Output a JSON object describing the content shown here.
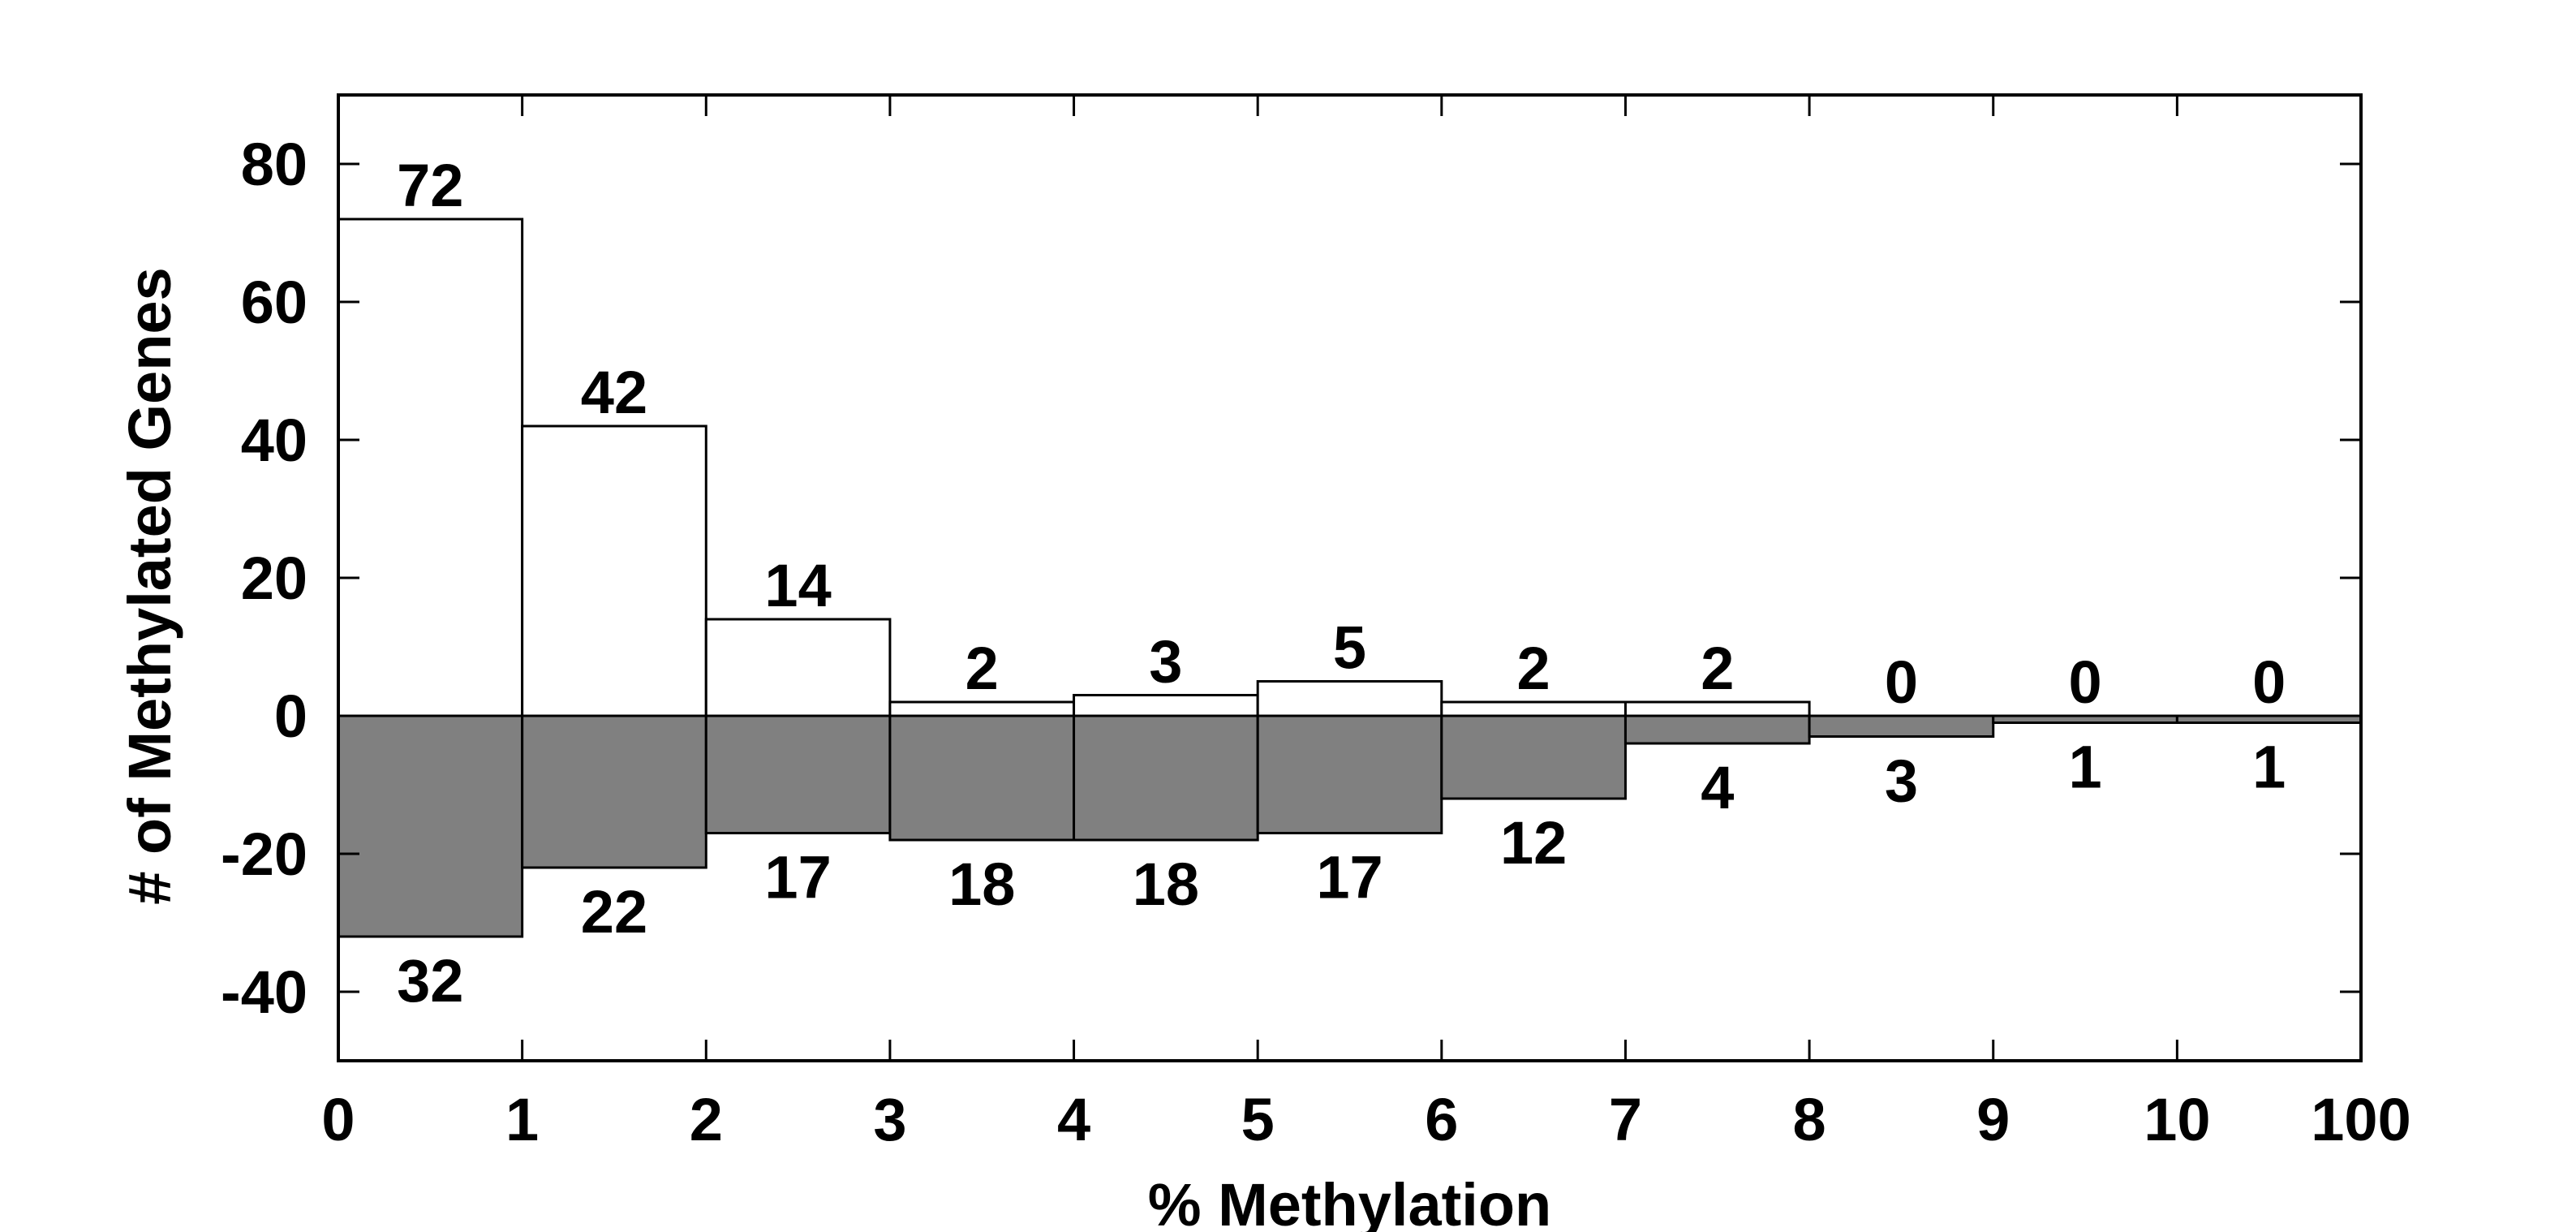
{
  "chart_data": {
    "type": "bar",
    "xlabel": "% Methylation",
    "ylabel": "# of Methylated Genes",
    "x_tick_labels": [
      "0",
      "1",
      "2",
      "3",
      "4",
      "5",
      "6",
      "7",
      "8",
      "9",
      "10",
      "100"
    ],
    "ylim": [
      -50,
      90
    ],
    "y_ticks": [
      -40,
      -20,
      0,
      20,
      40,
      60,
      80
    ],
    "grid": false,
    "legend": "none",
    "series": [
      {
        "values": [
          72,
          42,
          14,
          2,
          3,
          5,
          2,
          2,
          0,
          0,
          0
        ],
        "labels": [
          "72",
          "42",
          "14",
          "2",
          "3",
          "5",
          "2",
          "2",
          "0",
          "0",
          "0"
        ],
        "color": "#ffffff",
        "direction": "up"
      },
      {
        "values": [
          -32,
          -22,
          -17,
          -18,
          -18,
          -17,
          -12,
          -4,
          -3,
          -1,
          -1
        ],
        "labels": [
          "32",
          "22",
          "17",
          "18",
          "18",
          "17",
          "12",
          "4",
          "3",
          "1",
          "1"
        ],
        "color": "#808080",
        "direction": "down"
      }
    ]
  }
}
